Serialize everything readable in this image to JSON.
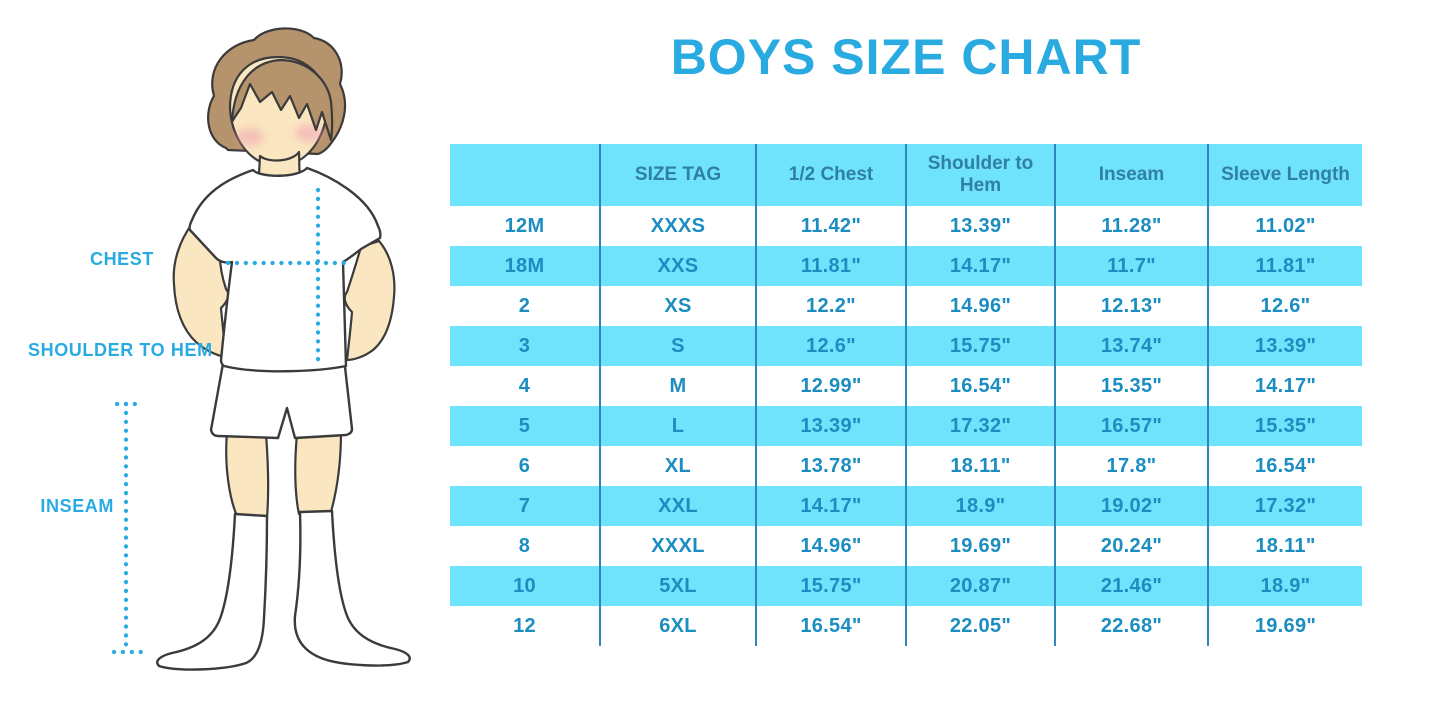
{
  "title": "BOYS SIZE CHART",
  "figure": {
    "chest_label": "CHEST",
    "shoulder_to_hem_label": "SHOULDER TO HEM",
    "inseam_label": "INSEAM"
  },
  "chart_data": {
    "type": "table",
    "columns": [
      "",
      "SIZE TAG",
      "1/2 Chest",
      "Shoulder to Hem",
      "Inseam",
      "Sleeve Length"
    ],
    "rows": [
      [
        "12M",
        "XXXS",
        "11.42\"",
        "13.39\"",
        "11.28\"",
        "11.02\""
      ],
      [
        "18M",
        "XXS",
        "11.81\"",
        "14.17\"",
        "11.7\"",
        "11.81\""
      ],
      [
        "2",
        "XS",
        "12.2\"",
        "14.96\"",
        "12.13\"",
        "12.6\""
      ],
      [
        "3",
        "S",
        "12.6\"",
        "15.75\"",
        "13.74\"",
        "13.39\""
      ],
      [
        "4",
        "M",
        "12.99\"",
        "16.54\"",
        "15.35\"",
        "14.17\""
      ],
      [
        "5",
        "L",
        "13.39\"",
        "17.32\"",
        "16.57\"",
        "15.35\""
      ],
      [
        "6",
        "XL",
        "13.78\"",
        "18.11\"",
        "17.8\"",
        "16.54\""
      ],
      [
        "7",
        "XXL",
        "14.17\"",
        "18.9\"",
        "19.02\"",
        "17.32\""
      ],
      [
        "8",
        "XXXL",
        "14.96\"",
        "19.69\"",
        "20.24\"",
        "18.11\""
      ],
      [
        "10",
        "5XL",
        "15.75\"",
        "20.87\"",
        "21.46\"",
        "18.9\""
      ],
      [
        "12",
        "6XL",
        "16.54\"",
        "22.05\"",
        "22.68\"",
        "19.69\""
      ]
    ]
  },
  "colors": {
    "accent_blue": "#29ABE2",
    "band_cyan": "#6FE3FB",
    "grid_line": "#2987BA",
    "cell_text": "#1B8DC0",
    "header_text": "#2F7FA6",
    "skin": "#FAE6C0",
    "hair": "#B5936C",
    "outline": "#3B3B3B",
    "blush": "#F0A3B4"
  }
}
